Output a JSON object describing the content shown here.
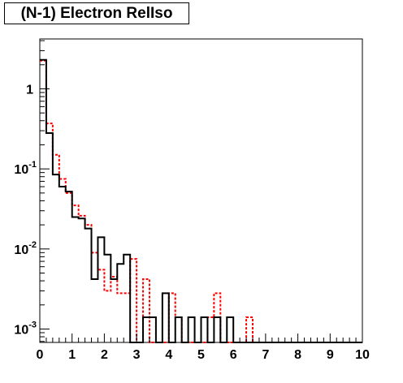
{
  "chart_data": {
    "type": "histogram",
    "title": "(N-1) Electron RelIso",
    "xlabel": "",
    "ylabel": "",
    "x_range": [
      0,
      10
    ],
    "y_range": [
      0.00068,
      4.2
    ],
    "y_scale": "log",
    "grid": false,
    "legend": "none",
    "bin_width": 0.2,
    "x_ticks": [
      "0",
      "1",
      "2",
      "3",
      "4",
      "5",
      "6",
      "7",
      "8",
      "9",
      "10"
    ],
    "y_ticks": [
      {
        "base": "1",
        "exp": "",
        "value": 1
      },
      {
        "base": "10",
        "exp": "-1",
        "value": 0.1
      },
      {
        "base": "10",
        "exp": "-2",
        "value": 0.01
      },
      {
        "base": "10",
        "exp": "-3",
        "value": 0.001
      }
    ],
    "series": [
      {
        "color": "#000000",
        "style": "solid",
        "values": [
          2.3,
          0.28,
          0.085,
          0.06,
          0.052,
          0.025,
          0.024,
          0.018,
          0.0042,
          0.014,
          0.0085,
          0.0042,
          0.0065,
          0.0085,
          0,
          0,
          0.0014,
          0.0014,
          0,
          0.0028,
          0,
          0.0014,
          0,
          0.0014,
          0,
          0.0014,
          0,
          0.0014,
          0,
          0.0014,
          0,
          0,
          0,
          0,
          0,
          0,
          0,
          0,
          0,
          0,
          0,
          0,
          0,
          0,
          0,
          0,
          0,
          0,
          0,
          0
        ]
      },
      {
        "color": "#ff0000",
        "style": "dashed",
        "values": [
          2.25,
          0.37,
          0.15,
          0.075,
          0.05,
          0.035,
          0.026,
          0.02,
          0.009,
          0.0055,
          0.003,
          0.0045,
          0.0028,
          0.0028,
          0.0075,
          0,
          0.0042,
          0,
          0,
          0,
          0.0028,
          0.0014,
          0,
          0,
          0,
          0,
          0.0014,
          0.0028,
          0,
          0,
          0,
          0,
          0.0014,
          0,
          0,
          0,
          0,
          0,
          0,
          0,
          0,
          0,
          0,
          0,
          0,
          0,
          0,
          0,
          0,
          0
        ]
      }
    ]
  }
}
